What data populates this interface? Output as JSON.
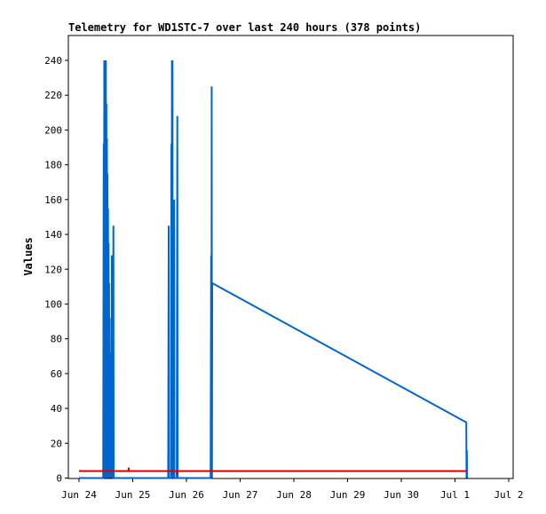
{
  "chart_data": {
    "type": "line",
    "title": "Telemetry for WD1STC-7 over last 240 hours (378 points)",
    "xlabel": "",
    "ylabel": "Values",
    "x_ticks": [
      "Jun 24",
      "Jun 25",
      "Jun 26",
      "Jun 27",
      "Jun 28",
      "Jun 29",
      "Jun 30",
      "Jul 1",
      "Jul 2"
    ],
    "x_range_days": [
      0,
      8
    ],
    "y_ticks": [
      0,
      20,
      40,
      60,
      80,
      100,
      120,
      140,
      160,
      180,
      200,
      220,
      240
    ],
    "ylim": [
      0,
      255
    ],
    "grid": false,
    "series": [
      {
        "color": "#0066cc",
        "points": [
          [
            0.0,
            0
          ],
          [
            0.45,
            0
          ],
          [
            0.46,
            192
          ],
          [
            0.465,
            0
          ],
          [
            0.47,
            240
          ],
          [
            0.475,
            0
          ],
          [
            0.48,
            225
          ],
          [
            0.485,
            0
          ],
          [
            0.5,
            240
          ],
          [
            0.505,
            0
          ],
          [
            0.51,
            215
          ],
          [
            0.515,
            0
          ],
          [
            0.52,
            195
          ],
          [
            0.525,
            0
          ],
          [
            0.53,
            175
          ],
          [
            0.535,
            0
          ],
          [
            0.54,
            155
          ],
          [
            0.545,
            0
          ],
          [
            0.55,
            135
          ],
          [
            0.555,
            0
          ],
          [
            0.56,
            112
          ],
          [
            0.565,
            0
          ],
          [
            0.57,
            92
          ],
          [
            0.575,
            0
          ],
          [
            0.58,
            72
          ],
          [
            0.585,
            0
          ],
          [
            0.59,
            52
          ],
          [
            0.595,
            0
          ],
          [
            0.6,
            32
          ],
          [
            0.605,
            0
          ],
          [
            0.61,
            128
          ],
          [
            0.615,
            0
          ],
          [
            0.625,
            112
          ],
          [
            0.63,
            0
          ],
          [
            0.64,
            145
          ],
          [
            0.645,
            0
          ],
          [
            0.655,
            0
          ],
          [
            1.66,
            0
          ],
          [
            1.67,
            145
          ],
          [
            1.675,
            0
          ],
          [
            1.715,
            0
          ],
          [
            1.72,
            192
          ],
          [
            1.725,
            0
          ],
          [
            1.73,
            240
          ],
          [
            1.735,
            0
          ],
          [
            1.74,
            240
          ],
          [
            1.745,
            0
          ],
          [
            1.75,
            128
          ],
          [
            1.755,
            0
          ],
          [
            1.77,
            160
          ],
          [
            1.775,
            0
          ],
          [
            1.82,
            0
          ],
          [
            1.83,
            208
          ],
          [
            1.835,
            0
          ],
          [
            2.45,
            0
          ],
          [
            2.46,
            128
          ],
          [
            2.465,
            0
          ],
          [
            2.47,
            225
          ],
          [
            2.475,
            0
          ],
          [
            2.48,
            112
          ],
          [
            7.21,
            32
          ],
          [
            7.215,
            0
          ],
          [
            7.22,
            16
          ],
          [
            7.225,
            0
          ]
        ]
      },
      {
        "color": "#dd0000",
        "points": [
          [
            0.0,
            4
          ],
          [
            0.92,
            4
          ],
          [
            0.925,
            6
          ],
          [
            0.93,
            4
          ],
          [
            1.82,
            4
          ],
          [
            1.825,
            2
          ],
          [
            1.83,
            4
          ],
          [
            7.22,
            4
          ]
        ]
      }
    ]
  }
}
